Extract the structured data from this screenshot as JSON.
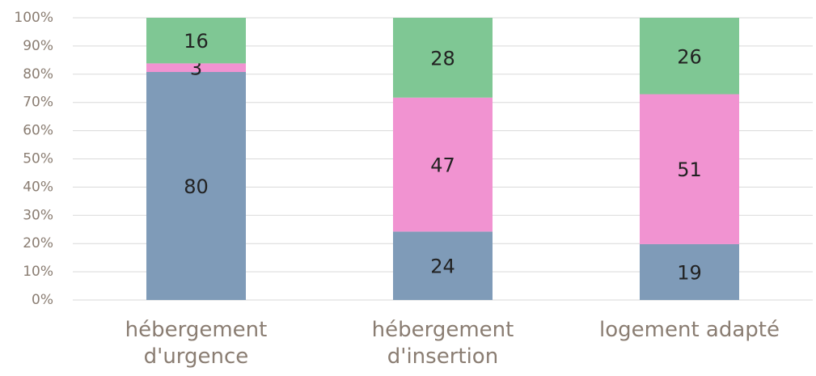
{
  "chart_data": {
    "type": "stacked100",
    "categories": [
      "hébergement d'urgence",
      "hébergement d'insertion",
      "logement adapté"
    ],
    "series": [
      {
        "color": "#7f9bb8",
        "values": [
          80,
          24,
          19
        ]
      },
      {
        "color": "#f193d1",
        "values": [
          3,
          47,
          51
        ]
      },
      {
        "color": "#7fc794",
        "values": [
          16,
          28,
          26
        ]
      }
    ],
    "ylim": [
      0,
      100
    ],
    "yticks": [
      {
        "value": 0,
        "label": "0%"
      },
      {
        "value": 10,
        "label": "10%"
      },
      {
        "value": 20,
        "label": "20%"
      },
      {
        "value": 30,
        "label": "30%"
      },
      {
        "value": 40,
        "label": "40%"
      },
      {
        "value": 50,
        "label": "50%"
      },
      {
        "value": 60,
        "label": "60%"
      },
      {
        "value": 70,
        "label": "70%"
      },
      {
        "value": 80,
        "label": "80%"
      },
      {
        "value": 90,
        "label": "90%"
      },
      {
        "value": 100,
        "label": "100%"
      }
    ],
    "grid": true
  }
}
